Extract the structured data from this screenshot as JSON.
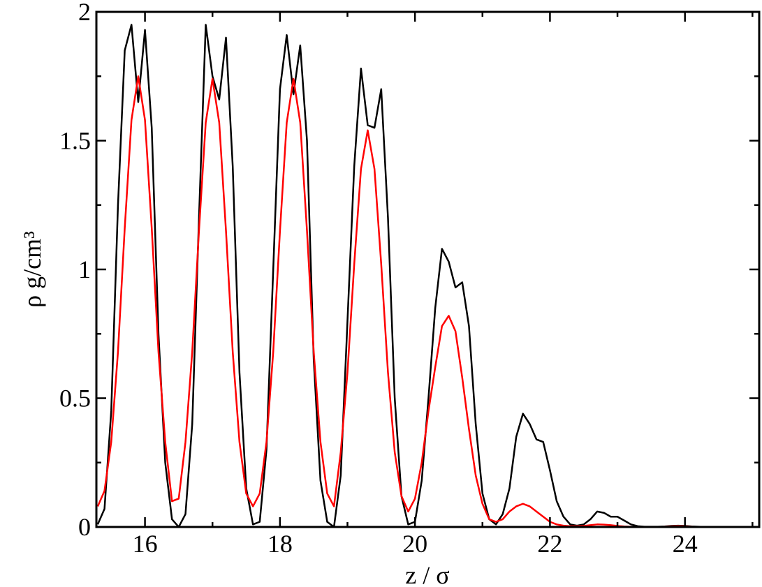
{
  "chart_data": {
    "type": "line",
    "xlabel": "z / σ",
    "ylabel": "ρ g/cm³",
    "x": [
      15.3,
      15.4,
      15.5,
      15.6,
      15.7,
      15.8,
      15.9,
      16.0,
      16.1,
      16.2,
      16.3,
      16.4,
      16.5,
      16.6,
      16.7,
      16.8,
      16.9,
      17.0,
      17.1,
      17.2,
      17.3,
      17.4,
      17.5,
      17.6,
      17.7,
      17.8,
      17.9,
      18.0,
      18.1,
      18.2,
      18.3,
      18.4,
      18.5,
      18.6,
      18.7,
      18.8,
      18.9,
      19.0,
      19.1,
      19.2,
      19.3,
      19.4,
      19.5,
      19.6,
      19.7,
      19.8,
      19.9,
      20.0,
      20.1,
      20.2,
      20.3,
      20.4,
      20.5,
      20.6,
      20.7,
      20.8,
      20.9,
      21.0,
      21.1,
      21.2,
      21.3,
      21.4,
      21.5,
      21.6,
      21.7,
      21.8,
      21.9,
      22.0,
      22.1,
      22.2,
      22.3,
      22.4,
      22.5,
      22.6,
      22.7,
      22.8,
      22.9,
      23.0,
      23.1,
      23.2,
      23.3,
      23.4,
      23.5,
      23.6,
      23.7,
      23.8,
      23.9,
      24.0,
      24.1,
      24.2,
      24.3
    ],
    "series": [
      {
        "color": "#000000",
        "values": [
          0.01,
          0.07,
          0.45,
          1.25,
          1.85,
          1.95,
          1.65,
          1.93,
          1.55,
          0.75,
          0.25,
          0.03,
          0.0,
          0.05,
          0.4,
          1.2,
          1.95,
          1.75,
          1.66,
          1.9,
          1.4,
          0.6,
          0.15,
          0.01,
          0.02,
          0.3,
          1.0,
          1.7,
          1.91,
          1.68,
          1.87,
          1.5,
          0.65,
          0.18,
          0.02,
          0.0,
          0.2,
          0.8,
          1.4,
          1.78,
          1.56,
          1.55,
          1.7,
          1.2,
          0.5,
          0.12,
          0.01,
          0.02,
          0.18,
          0.5,
          0.85,
          1.08,
          1.03,
          0.93,
          0.95,
          0.78,
          0.4,
          0.13,
          0.03,
          0.01,
          0.05,
          0.15,
          0.35,
          0.44,
          0.4,
          0.34,
          0.33,
          0.22,
          0.1,
          0.04,
          0.01,
          0.005,
          0.01,
          0.03,
          0.06,
          0.055,
          0.04,
          0.04,
          0.025,
          0.01,
          0.003,
          0.001,
          0.001,
          0.001,
          0.002,
          0.004,
          0.005,
          0.004,
          0.002,
          0.001,
          0.0
        ]
      },
      {
        "color": "#ff0000",
        "values": [
          0.08,
          0.14,
          0.33,
          0.68,
          1.16,
          1.58,
          1.75,
          1.58,
          1.16,
          0.68,
          0.33,
          0.1,
          0.11,
          0.33,
          0.68,
          1.15,
          1.57,
          1.74,
          1.57,
          1.15,
          0.68,
          0.33,
          0.13,
          0.08,
          0.13,
          0.33,
          0.68,
          1.15,
          1.57,
          1.74,
          1.57,
          1.15,
          0.68,
          0.33,
          0.13,
          0.08,
          0.29,
          0.6,
          1.02,
          1.39,
          1.54,
          1.39,
          1.02,
          0.6,
          0.29,
          0.12,
          0.06,
          0.11,
          0.25,
          0.45,
          0.62,
          0.78,
          0.82,
          0.76,
          0.58,
          0.38,
          0.2,
          0.09,
          0.03,
          0.02,
          0.03,
          0.06,
          0.08,
          0.09,
          0.08,
          0.06,
          0.04,
          0.02,
          0.01,
          0.005,
          0.003,
          0.003,
          0.004,
          0.007,
          0.01,
          0.009,
          0.007,
          0.004,
          0.002,
          0.001,
          0.0,
          0.0,
          0.0,
          0.0,
          0.001,
          0.002,
          0.003,
          0.002,
          0.001,
          0.0,
          0.0
        ]
      }
    ],
    "xlim": [
      15.28,
      25.1
    ],
    "ylim": [
      0,
      2
    ],
    "xticks": [
      16,
      18,
      20,
      22,
      24
    ],
    "yticks": [
      0,
      0.5,
      1,
      1.5,
      2
    ],
    "xminorticks": [
      17,
      19,
      21,
      23,
      25
    ],
    "yminorticks": [
      0.25,
      0.75,
      1.25,
      1.75
    ]
  }
}
